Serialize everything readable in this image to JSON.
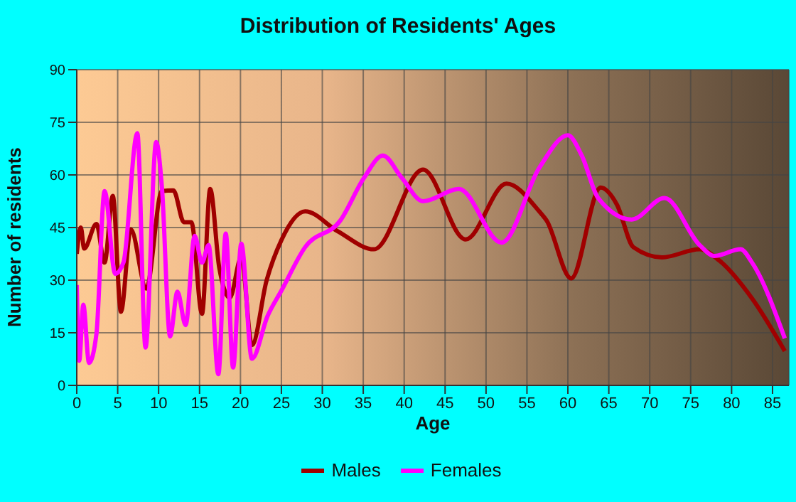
{
  "chart_data": {
    "type": "line",
    "title": "Distribution of Residents' Ages",
    "xlabel": "Age",
    "ylabel": "Number of residents",
    "xlim": [
      0,
      87
    ],
    "xticks": [
      0,
      5,
      10,
      15,
      20,
      25,
      30,
      35,
      40,
      45,
      50,
      55,
      60,
      65,
      70,
      75,
      80,
      85
    ],
    "ylim": [
      0,
      90
    ],
    "yticks": [
      0,
      15,
      30,
      45,
      60,
      75,
      90
    ],
    "grid": true,
    "legend": "bottom",
    "marker": "none",
    "line_style": "solid",
    "series": [
      {
        "name": "Males",
        "color": "#a00000",
        "x": [
          0,
          0.5,
          0.9,
          2.4,
          3.4,
          4.4,
          5.4,
          6.6,
          8.5,
          10.4,
          11.8,
          13.1,
          14,
          15.3,
          16.3,
          17.4,
          18.7,
          20.1,
          21.4,
          23.2,
          25,
          27.9,
          31.9,
          36.3,
          42.3,
          47.5,
          52.5,
          56.5,
          57.4,
          60.4,
          64,
          66,
          68,
          71.5,
          76.1,
          78.5,
          82.5,
          86.5
        ],
        "values": [
          37.5,
          45,
          39,
          46,
          35,
          54,
          21,
          44.5,
          27.6,
          55.4,
          55.6,
          46.5,
          46.5,
          20.4,
          56,
          33.7,
          25,
          36.5,
          11.5,
          30,
          41.4,
          49.6,
          43.9,
          38.8,
          61.5,
          41.6,
          57.5,
          49.6,
          47,
          30.5,
          56.4,
          51.5,
          39.4,
          36.5,
          38.8,
          35.6,
          24.8,
          9.8
        ]
      },
      {
        "name": "Females",
        "color": "#ff00ff",
        "x": [
          0,
          0.3,
          0.8,
          1.5,
          2.4,
          3.4,
          4.7,
          5.7,
          7.4,
          8.4,
          9.7,
          10.4,
          11.4,
          12.3,
          13.3,
          14.4,
          15.3,
          16.1,
          17.3,
          18.2,
          19.1,
          20.1,
          21.4,
          23.3,
          25,
          27.9,
          32.2,
          35.1,
          37.4,
          39.7,
          42.3,
          46.7,
          51.9,
          56.5,
          60,
          61.7,
          63.7,
          67.8,
          71.8,
          76.1,
          77.9,
          81.1,
          82.5,
          86.5
        ],
        "values": [
          28.6,
          7,
          23,
          6.4,
          14.6,
          55.4,
          31.8,
          35,
          71.9,
          10.8,
          69.4,
          56.6,
          14,
          26.7,
          17.2,
          42.6,
          35,
          40,
          3.2,
          43.3,
          5.1,
          40.4,
          7.6,
          19.7,
          27,
          39.4,
          47,
          59.2,
          65.5,
          59.2,
          52.5,
          56,
          40.7,
          62,
          71.3,
          65.5,
          53.4,
          47.3,
          53.4,
          40,
          36.9,
          38.8,
          35,
          13.4
        ]
      }
    ]
  }
}
